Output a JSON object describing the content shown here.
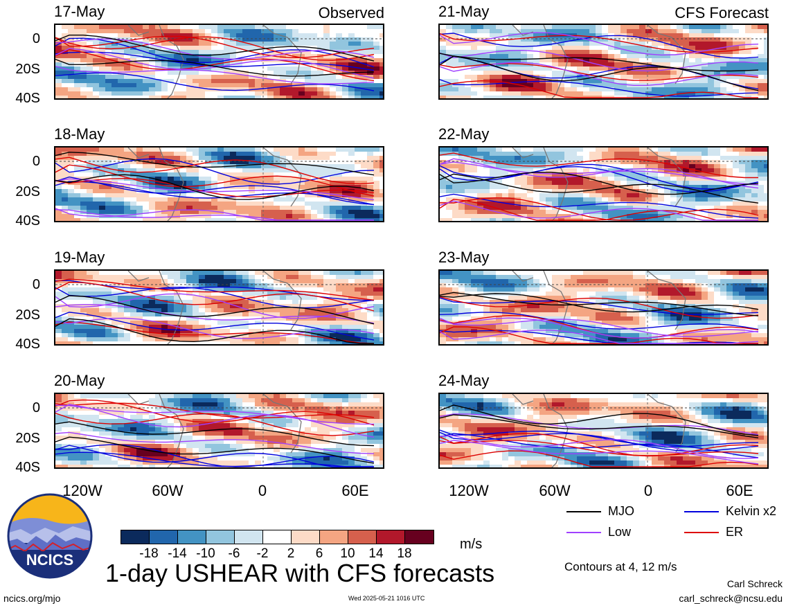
{
  "chart_data": {
    "type": "heatmap",
    "title": "1-day USHEAR with CFS forecasts",
    "variable": "USHEAR",
    "units": "m/s",
    "columns": [
      {
        "label": "Observed",
        "dates": [
          "17-May",
          "18-May",
          "19-May",
          "20-May"
        ]
      },
      {
        "label": "CFS Forecast",
        "dates": [
          "21-May",
          "22-May",
          "23-May",
          "24-May"
        ]
      }
    ],
    "y_ticks": [
      "0",
      "20S",
      "40S"
    ],
    "x_ticks": [
      "120W",
      "60W",
      "0",
      "60E"
    ],
    "colorbar": {
      "levels": [
        "-18",
        "-14",
        "-10",
        "-6",
        "-2",
        "2",
        "6",
        "10",
        "14",
        "18"
      ],
      "colors": [
        "#0b2a5c",
        "#2166ac",
        "#4393c3",
        "#92c5de",
        "#d1e5f0",
        "#ffffff",
        "#fddbc7",
        "#f4a582",
        "#d6604d",
        "#b2182b",
        "#67001f"
      ]
    },
    "contours_note": "Contours at 4, 12 m/s",
    "legend": [
      {
        "name": "MJO",
        "color": "#000000"
      },
      {
        "name": "Kelvin x2",
        "color": "#0000dd"
      },
      {
        "name": "Low",
        "color": "#a040ff"
      },
      {
        "name": "ER",
        "color": "#dd0000"
      }
    ]
  },
  "footer": {
    "logo_text": "NCICS",
    "url": "ncics.org/mjo",
    "timestamp": "Wed 2025-05-21 1016 UTC",
    "author": "Carl Schreck",
    "email": "carl_schreck@ncsu.edu"
  }
}
